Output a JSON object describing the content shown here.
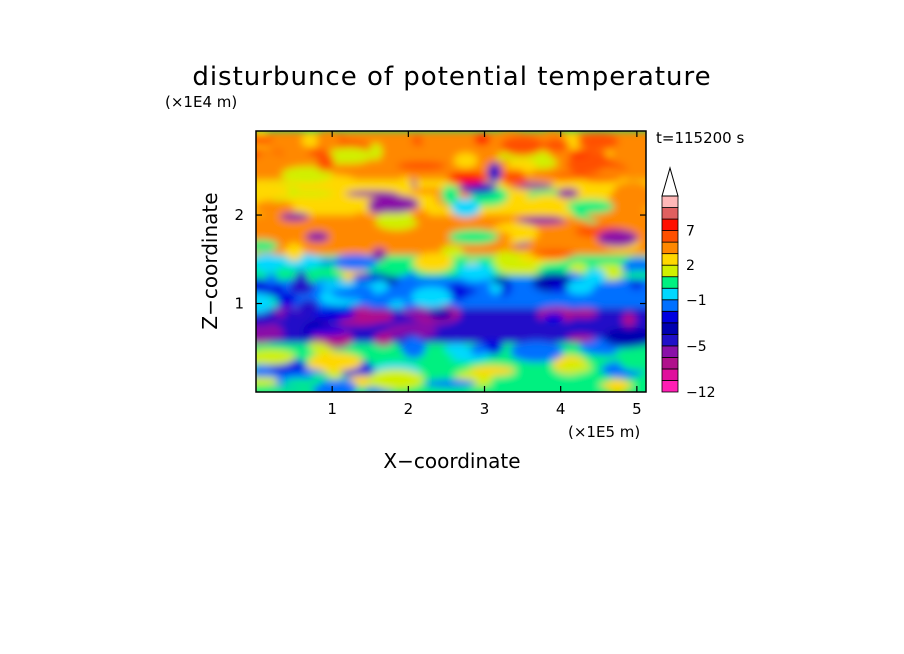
{
  "chart_data": {
    "type": "heatmap",
    "title": "disturbunce of potential temperature",
    "xlabel": "X−coordinate",
    "ylabel": "Z−coordinate",
    "x_scale_label": "(×1E5 m)",
    "y_scale_label": "(×1E4 m)",
    "annotation": "t=115200 s",
    "xlim": [
      0,
      5.12
    ],
    "ylim": [
      0,
      2.95
    ],
    "x_ticks": [
      "1",
      "2",
      "3",
      "4",
      "5"
    ],
    "y_ticks": [
      "1",
      "2"
    ],
    "colorbar": {
      "levels": [
        -12,
        -10,
        -8,
        -6,
        -5,
        -4,
        -3,
        -2,
        -1,
        0,
        1,
        2,
        3,
        5,
        7,
        9,
        11
      ],
      "colors": [
        "#ff1fb4",
        "#e0109c",
        "#b0108c",
        "#8a10a8",
        "#2010c8",
        "#0000b0",
        "#0000e0",
        "#0070ff",
        "#00d8ff",
        "#00f080",
        "#d0f000",
        "#ffd800",
        "#ff8800",
        "#ff5000",
        "#ff1000",
        "#e06060",
        "#ffb8b8"
      ],
      "tick_labels": [
        "7",
        "2",
        "−1",
        "−5",
        "−12"
      ],
      "tick_values": [
        7,
        2,
        -1,
        -5,
        -12
      ],
      "extend": "max"
    },
    "field_description": [
      {
        "z_range": [
          0,
          0.2
        ],
        "value": 0.5
      },
      {
        "z_range": [
          0.2,
          0.55
        ],
        "value": 0
      },
      {
        "z_range": [
          0.55,
          0.95
        ],
        "value": -5
      },
      {
        "z_range": [
          0.95,
          1.3
        ],
        "value": -2
      },
      {
        "z_range": [
          1.3,
          1.55
        ],
        "value": 0
      },
      {
        "z_range": [
          1.55,
          2.0
        ],
        "value": 3
      },
      {
        "z_range": [
          2.0,
          2.4
        ],
        "value": 2
      },
      {
        "z_range": [
          2.4,
          2.95
        ],
        "value": 4
      }
    ]
  }
}
